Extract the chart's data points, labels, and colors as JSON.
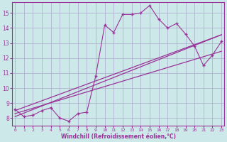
{
  "xlabel": "Windchill (Refroidissement éolien,°C)",
  "ylabel": "",
  "bg_color": "#cde8e8",
  "grid_color": "#aaaacc",
  "line_color": "#993399",
  "x_ticks": [
    0,
    1,
    2,
    3,
    4,
    5,
    6,
    7,
    8,
    9,
    10,
    11,
    12,
    13,
    14,
    15,
    16,
    17,
    18,
    19,
    20,
    21,
    22,
    23
  ],
  "y_ticks": [
    8,
    9,
    10,
    11,
    12,
    13,
    14,
    15
  ],
  "xlim": [
    -0.3,
    23.3
  ],
  "ylim": [
    7.5,
    15.7
  ],
  "series1_x": [
    0,
    1,
    2,
    3,
    4,
    5,
    6,
    7,
    8,
    9,
    10,
    11,
    12,
    13,
    14,
    15,
    16,
    17,
    18,
    19,
    20,
    21,
    22,
    23
  ],
  "series1_y": [
    8.6,
    8.1,
    8.2,
    8.5,
    8.7,
    8.0,
    7.8,
    8.3,
    8.4,
    10.8,
    14.2,
    13.7,
    14.9,
    14.9,
    15.0,
    15.5,
    14.6,
    14.0,
    14.3,
    13.6,
    12.8,
    11.5,
    12.2,
    13.1
  ],
  "series2_x": [
    0,
    23
  ],
  "series2_y": [
    8.5,
    13.55
  ],
  "series3_x": [
    0,
    23
  ],
  "series3_y": [
    8.3,
    12.45
  ],
  "series4_x": [
    0,
    23
  ],
  "series4_y": [
    8.1,
    13.55
  ]
}
